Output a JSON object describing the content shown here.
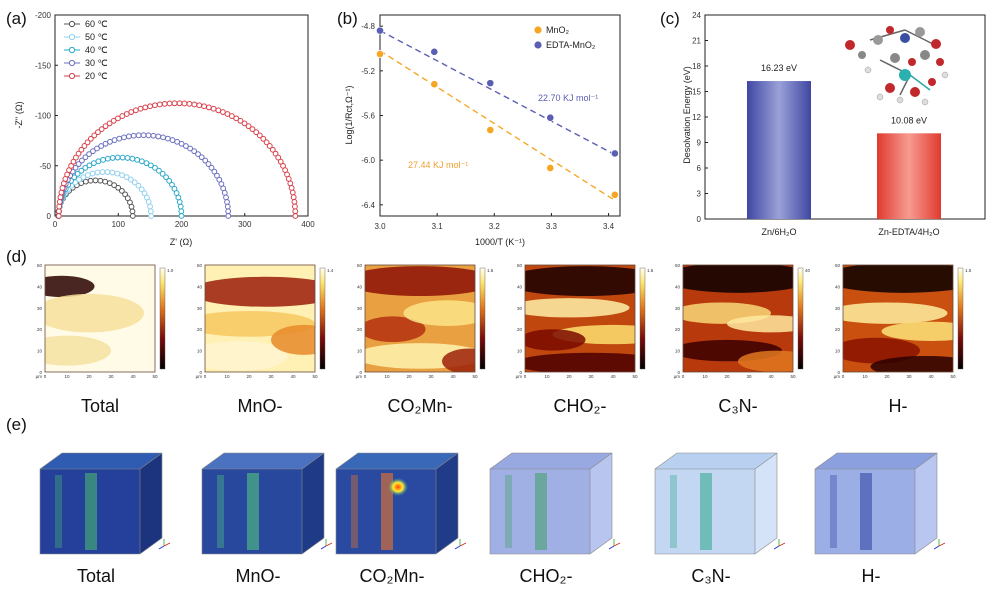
{
  "panels": {
    "a": "(a)",
    "b": "(b)",
    "c": "(c)",
    "d": "(d)",
    "e": "(e)"
  },
  "chart_data": [
    {
      "type": "scatter",
      "panel": "a",
      "title": "",
      "xlabel": "Z' (Ω)",
      "ylabel": "-Z'' (Ω)",
      "xlim": [
        0,
        400
      ],
      "ylim": [
        0,
        -200
      ],
      "xticks": [
        "0",
        "100",
        "200",
        "300",
        "400"
      ],
      "yticks": [
        "0",
        "-50",
        "-100",
        "-150",
        "-200"
      ],
      "legend_position": "top-left",
      "series": [
        {
          "name": "60 ℃",
          "color": "#555555",
          "r0": 5,
          "diameter": 118
        },
        {
          "name": "50 ℃",
          "color": "#8fd0ef",
          "r0": 6,
          "diameter": 146
        },
        {
          "name": "40 ℃",
          "color": "#2aa7c8",
          "r0": 6,
          "diameter": 194
        },
        {
          "name": "30 ℃",
          "color": "#6a6fbf",
          "r0": 6,
          "diameter": 268
        },
        {
          "name": "20 ℃",
          "color": "#d9404a",
          "r0": 6,
          "diameter": 374
        }
      ]
    },
    {
      "type": "scatter",
      "panel": "b",
      "xlabel": "1000/T (K⁻¹)",
      "ylabel": "Log(1/Rct,Ω⁻¹)",
      "xlim": [
        3.0,
        3.42
      ],
      "ylim": [
        -6.5,
        -4.7
      ],
      "xticks": [
        "3.0",
        "3.1",
        "3.2",
        "3.3",
        "3.4"
      ],
      "yticks": [
        "-4.8",
        "-5.2",
        "-5.6",
        "-6.0",
        "-6.4"
      ],
      "legend_position": "top-right",
      "series": [
        {
          "name": "MnO₂",
          "color": "#f5a623",
          "x": [
            3.0,
            3.095,
            3.193,
            3.298,
            3.411
          ],
          "y": [
            -5.05,
            -5.32,
            -5.73,
            -6.07,
            -6.31
          ],
          "annotation": "27.44 KJ mol⁻¹",
          "fit": [
            [
              3.0,
              -5.02
            ],
            [
              3.411,
              -6.36
            ]
          ]
        },
        {
          "name": "EDTA-MnO₂",
          "color": "#5b5fb3",
          "x": [
            3.0,
            3.095,
            3.193,
            3.298,
            3.411
          ],
          "y": [
            -4.84,
            -5.03,
            -5.31,
            -5.62,
            -5.94
          ],
          "annotation": "22.70 KJ mol⁻¹",
          "fit": [
            [
              3.0,
              -4.84
            ],
            [
              3.411,
              -5.95
            ]
          ]
        }
      ]
    },
    {
      "type": "bar",
      "panel": "c",
      "xlabel": "",
      "ylabel": "Desolvation Energy (eV)",
      "ylim": [
        0,
        24
      ],
      "yticks": [
        "0",
        "3",
        "6",
        "9",
        "12",
        "15",
        "18",
        "21",
        "24"
      ],
      "categories": [
        "Zn/6H₂O",
        "Zn-EDTA/4H₂O"
      ],
      "values": [
        16.23,
        10.08
      ],
      "labels": [
        "16.23 eV",
        "10.08 eV"
      ],
      "colors": [
        "#5a63b4",
        "#e8453c"
      ]
    }
  ],
  "maps": {
    "labels": [
      "Total",
      "MnO-",
      "CO₂Mn-",
      "CHO₂-",
      "C₃N-",
      "H-"
    ],
    "axis_ticks": [
      "0",
      "10",
      "20",
      "30",
      "40",
      "50"
    ],
    "unit": "μm",
    "colorbar_tops": [
      "1.0",
      "1.4",
      "1.6",
      "1.6",
      "40",
      "1.5"
    ]
  },
  "cubes": {
    "labels": [
      "Total",
      "MnO-",
      "CO₂Mn-",
      "CHO₂-",
      "C₃N-",
      "H-"
    ]
  }
}
